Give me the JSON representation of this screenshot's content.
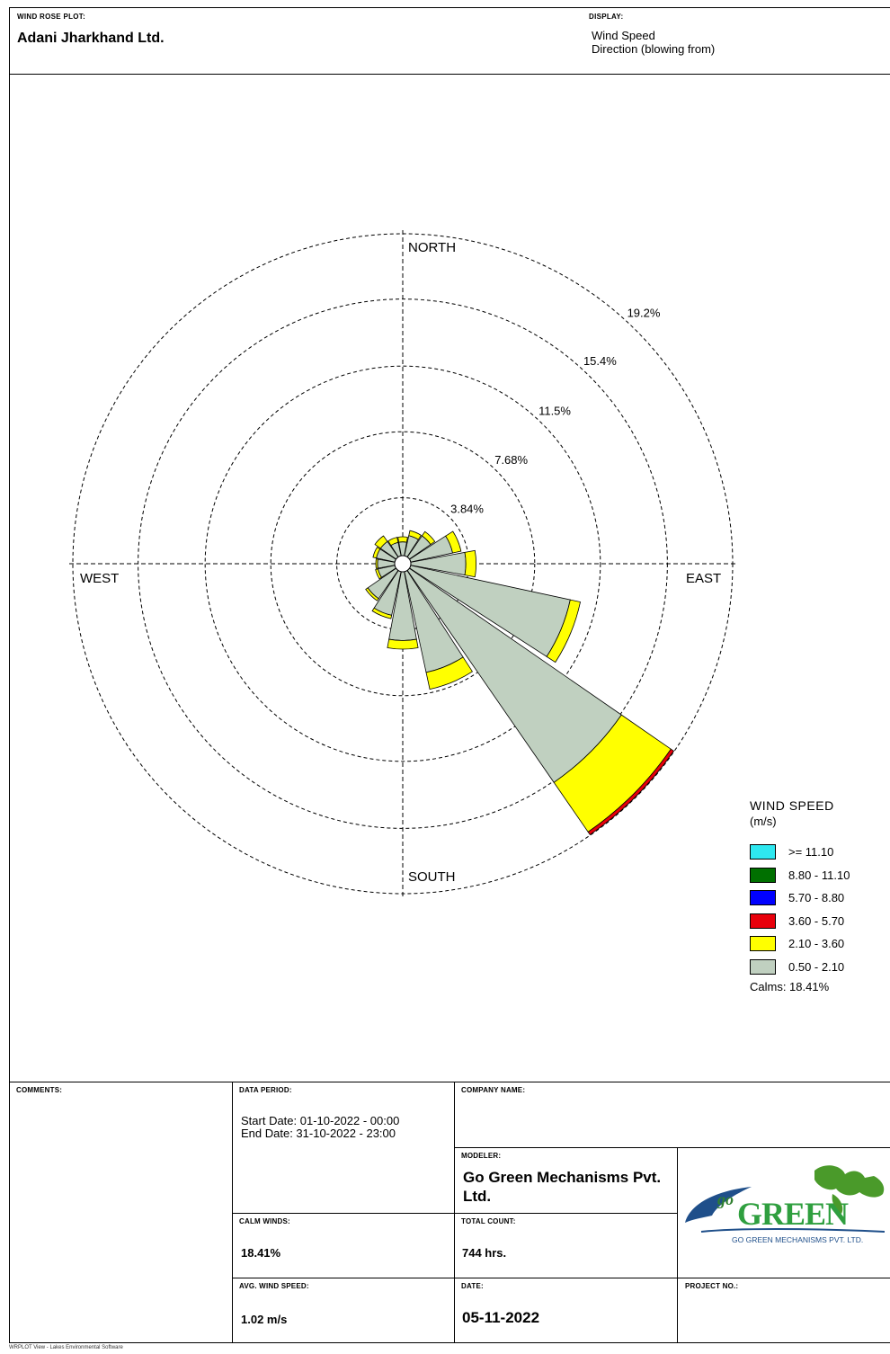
{
  "header": {
    "plot_label": "WIND ROSE PLOT:",
    "title": "Adani Jharkhand Ltd.",
    "display_label": "DISPLAY:",
    "display_line1": "Wind Speed",
    "display_line2": "Direction (blowing from)"
  },
  "chart_data": {
    "type": "windrose",
    "direction_labels": {
      "north": "NORTH",
      "south": "SOUTH",
      "east": "EAST",
      "west": "WEST"
    },
    "ring_values": [
      3.84,
      7.68,
      11.5,
      15.4,
      19.2
    ],
    "ring_labels": [
      "3.84%",
      "7.68%",
      "11.5%",
      "15.4%",
      "19.2%"
    ],
    "rmax": 19.2,
    "direction_unit": "degrees (blowing from)",
    "sector_width": 22.5,
    "speed_bins": [
      "0.50 - 2.10",
      "2.10 - 3.60",
      "3.60 - 5.70",
      "5.70 - 8.80",
      "8.80 - 11.10",
      ">= 11.10"
    ],
    "bin_colors": [
      "#c0d0c0",
      "#ffff00",
      "#e8000b",
      "#0000ff",
      "#007000",
      "#2ee8f0"
    ],
    "sectors": [
      {
        "dir": 0,
        "values": [
          0.8,
          0.3,
          0,
          0,
          0,
          0
        ]
      },
      {
        "dir": 22.5,
        "values": [
          1.2,
          0.3,
          0,
          0,
          0,
          0
        ]
      },
      {
        "dir": 45,
        "values": [
          1.5,
          0.3,
          0,
          0,
          0,
          0
        ]
      },
      {
        "dir": 67.5,
        "values": [
          2.5,
          0.5,
          0,
          0,
          0,
          0
        ]
      },
      {
        "dir": 90,
        "values": [
          3.2,
          0.6,
          0,
          0,
          0,
          0
        ]
      },
      {
        "dir": 112.5,
        "values": [
          9.5,
          0.6,
          0,
          0,
          0,
          0
        ]
      },
      {
        "dir": 135,
        "values": [
          15.0,
          3.5,
          0.2,
          0,
          0,
          0
        ]
      },
      {
        "dir": 157.5,
        "values": [
          6.0,
          1.0,
          0,
          0,
          0,
          0
        ]
      },
      {
        "dir": 180,
        "values": [
          4.0,
          0.5,
          0,
          0,
          0,
          0
        ]
      },
      {
        "dir": 202.5,
        "values": [
          2.6,
          0.2,
          0,
          0,
          0,
          0
        ]
      },
      {
        "dir": 225,
        "values": [
          2.0,
          0.15,
          0,
          0,
          0,
          0
        ]
      },
      {
        "dir": 247.5,
        "values": [
          1.0,
          0.15,
          0,
          0,
          0,
          0
        ]
      },
      {
        "dir": 270,
        "values": [
          1.0,
          0.1,
          0,
          0,
          0,
          0
        ]
      },
      {
        "dir": 292.5,
        "values": [
          1.1,
          0.2,
          0,
          0,
          0,
          0
        ]
      },
      {
        "dir": 315,
        "values": [
          1.1,
          0.4,
          0,
          0,
          0,
          0
        ]
      },
      {
        "dir": 337.5,
        "values": [
          0.8,
          0.3,
          0,
          0,
          0,
          0
        ]
      }
    ]
  },
  "legend": {
    "title": "WIND SPEED",
    "unit": "(m/s)",
    "items": [
      {
        "label": ">= 11.10",
        "color": "#2ee8f0"
      },
      {
        "label": "8.80 - 11.10",
        "color": "#007000"
      },
      {
        "label": "5.70 - 8.80",
        "color": "#0000ff"
      },
      {
        "label": "3.60 - 5.70",
        "color": "#e8000b"
      },
      {
        "label": "2.10 - 3.60",
        "color": "#ffff00"
      },
      {
        "label": "0.50 - 2.10",
        "color": "#c0d0c0"
      }
    ],
    "calms": "Calms: 18.41%"
  },
  "info": {
    "comments_label": "COMMENTS:",
    "data_period_label": "DATA PERIOD:",
    "start_date": "Start Date: 01-10-2022 - 00:00",
    "end_date": "End Date: 31-10-2022 - 23:00",
    "company_label": "COMPANY NAME:",
    "modeler_label": "MODELER:",
    "modeler_value": "Go Green Mechanisms Pvt. Ltd.",
    "calm_label": "CALM WINDS:",
    "calm_value": "18.41%",
    "total_label": "TOTAL COUNT:",
    "total_value": "744 hrs.",
    "avg_label": "AVG. WIND SPEED:",
    "avg_value": "1.02 m/s",
    "date_label": "DATE:",
    "date_value": "05-11-2022",
    "project_label": "PROJECT NO.:",
    "logo_text": "GREEN",
    "logo_prefix": "go",
    "logo_subtitle": "GO GREEN MECHANISMS PVT. LTD."
  },
  "footer": "WRPLOT View - Lakes Environmental Software"
}
